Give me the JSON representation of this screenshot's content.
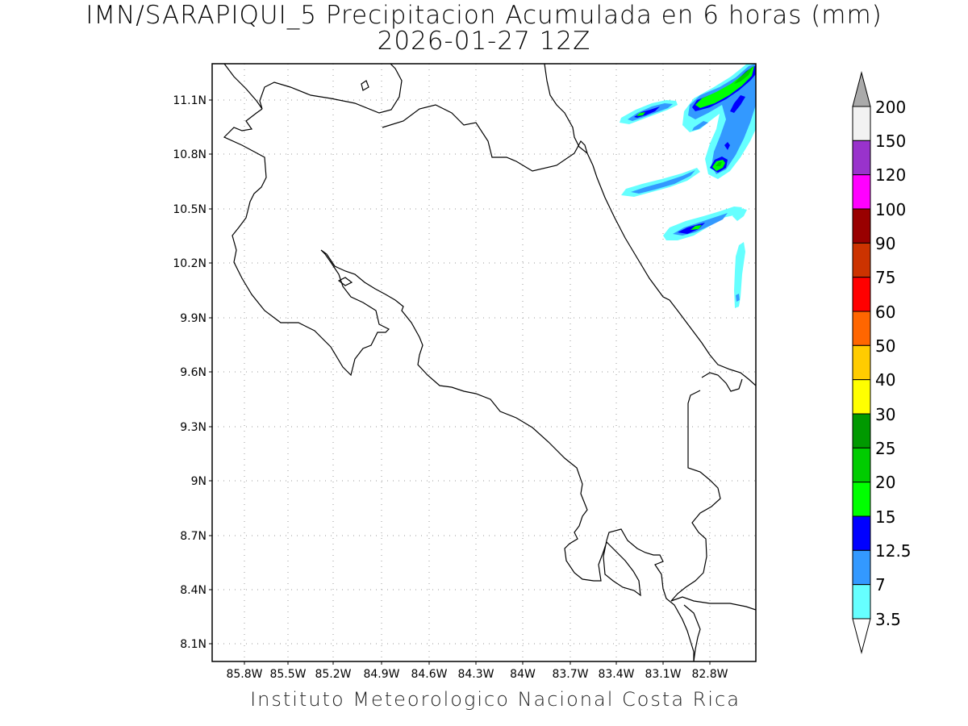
{
  "title": {
    "line1": "IMN/SARAPIQUI_5 Precipitacion Acumulada en 6 horas (mm)",
    "line2": "2026-01-27 12Z"
  },
  "footer": "Instituto Meteorologico Nacional Costa Rica",
  "map": {
    "lat_labels": [
      "11.1N",
      "10.8N",
      "10.5N",
      "10.2N",
      "9.9N",
      "9.6N",
      "9.3N",
      "9N",
      "8.7N",
      "8.4N",
      "8.1N"
    ],
    "lon_labels": [
      "85.8W",
      "85.5W",
      "85.2W",
      "84.9W",
      "84.6W",
      "84.3W",
      "84W",
      "83.7W",
      "83.4W",
      "83.1W",
      "82.8W"
    ],
    "grid": true,
    "coastline_color": "#000000"
  },
  "precip_colors": {
    "c3_5": "#66ffff",
    "c7": "#3399ff",
    "c12_5": "#0000ff",
    "c15": "#00ff00",
    "c20": "#00cc00"
  },
  "colorbar": {
    "labels": [
      "200",
      "150",
      "120",
      "100",
      "90",
      "75",
      "60",
      "50",
      "40",
      "30",
      "25",
      "20",
      "15",
      "12.5",
      "7",
      "3.5"
    ],
    "colors": [
      "#f2f2f2",
      "#9933cc",
      "#ff00ff",
      "#990000",
      "#cc3300",
      "#ff0000",
      "#ff6600",
      "#ffcc00",
      "#ffff00",
      "#009900",
      "#00cc00",
      "#00ff00",
      "#0000ff",
      "#3399ff",
      "#66ffff"
    ],
    "top_triangle_color": "#aaaaaa",
    "bottom_triangle_color": "#ffffff"
  }
}
